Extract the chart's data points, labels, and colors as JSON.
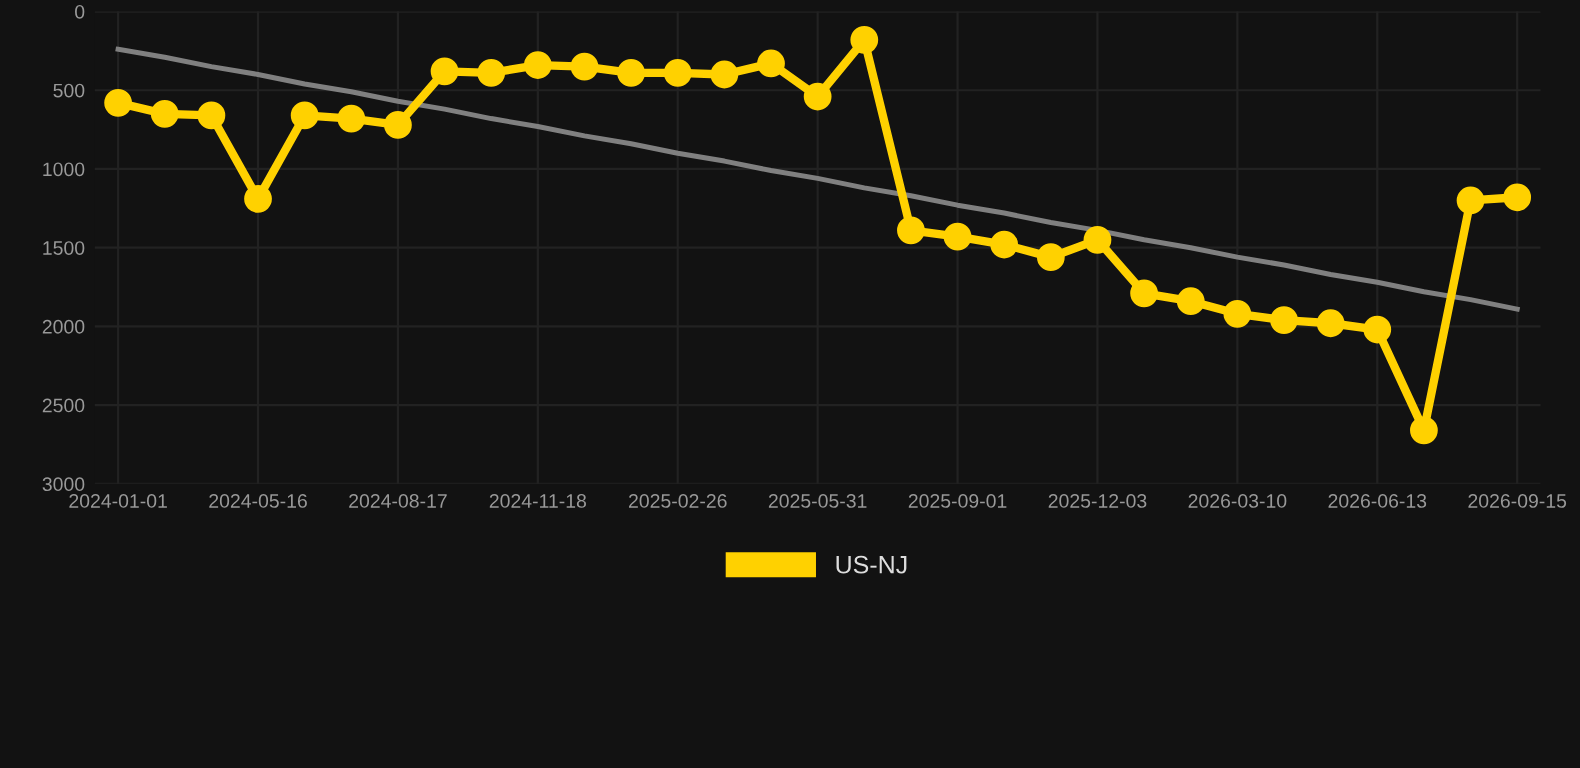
{
  "chart_data": {
    "type": "line",
    "categories": [
      "2024-01-01",
      null,
      null,
      "2024-05-16",
      null,
      null,
      "2024-08-17",
      null,
      null,
      "2024-11-18",
      null,
      null,
      "2025-02-26",
      null,
      null,
      "2025-05-31",
      null,
      null,
      "2025-09-01",
      null,
      null,
      "2025-12-03",
      null,
      null,
      "2026-03-10",
      null,
      null,
      "2026-06-13",
      null,
      null,
      "2026-09-15"
    ],
    "series": [
      {
        "name": "US-NJ",
        "color": "#ffd100",
        "marker": "circle",
        "values": [
          580,
          650,
          660,
          1190,
          660,
          680,
          720,
          380,
          390,
          340,
          350,
          390,
          390,
          400,
          330,
          540,
          180,
          1390,
          1430,
          1480,
          1560,
          1450,
          1790,
          1840,
          1920,
          1960,
          1980,
          2020,
          2660,
          1200,
          1180
        ]
      },
      {
        "type": "line",
        "color": "#808080",
        "marker": "none",
        "values": [
          240,
          290,
          350,
          400,
          460,
          510,
          570,
          620,
          680,
          730,
          790,
          840,
          900,
          950,
          1010,
          1060,
          1120,
          1170,
          1230,
          1280,
          1340,
          1390,
          1450,
          1500,
          1560,
          1610,
          1670,
          1720,
          1780,
          1830,
          1890
        ]
      }
    ],
    "ylim": [
      3000,
      0
    ],
    "yticks": [
      0,
      500,
      1000,
      1500,
      2000,
      2500,
      3000
    ],
    "grid": true,
    "legend": "bottom",
    "line_style": "solid"
  }
}
